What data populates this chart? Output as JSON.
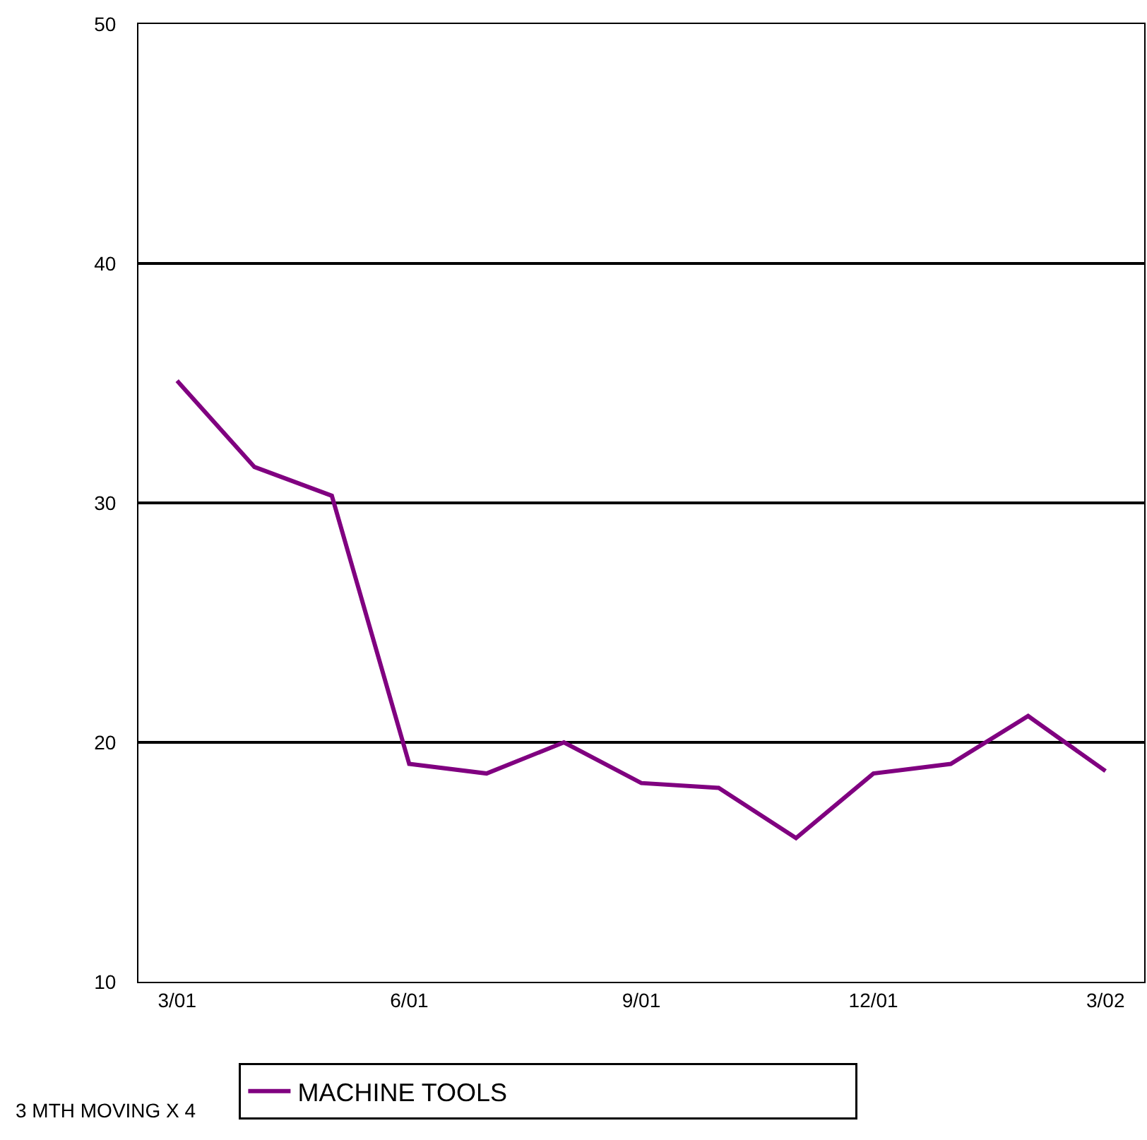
{
  "chart_data": {
    "type": "line",
    "categories": [
      "3/01",
      null,
      null,
      "6/01",
      null,
      null,
      "9/01",
      null,
      null,
      "12/01",
      null,
      null,
      "3/02"
    ],
    "series": [
      {
        "name": "MACHINE TOOLS",
        "color": "#800080",
        "values": [
          35.1,
          31.5,
          30.3,
          19.1,
          18.7,
          20.0,
          18.3,
          18.1,
          16.0,
          18.7,
          19.1,
          21.1,
          18.8
        ]
      }
    ],
    "ylim": [
      10,
      50
    ],
    "yticks": [
      10,
      20,
      30,
      40,
      50
    ],
    "grid": "y",
    "legend": "bottom",
    "marker": "none",
    "annotations": [
      "3 MTH MOVING X 4"
    ]
  }
}
